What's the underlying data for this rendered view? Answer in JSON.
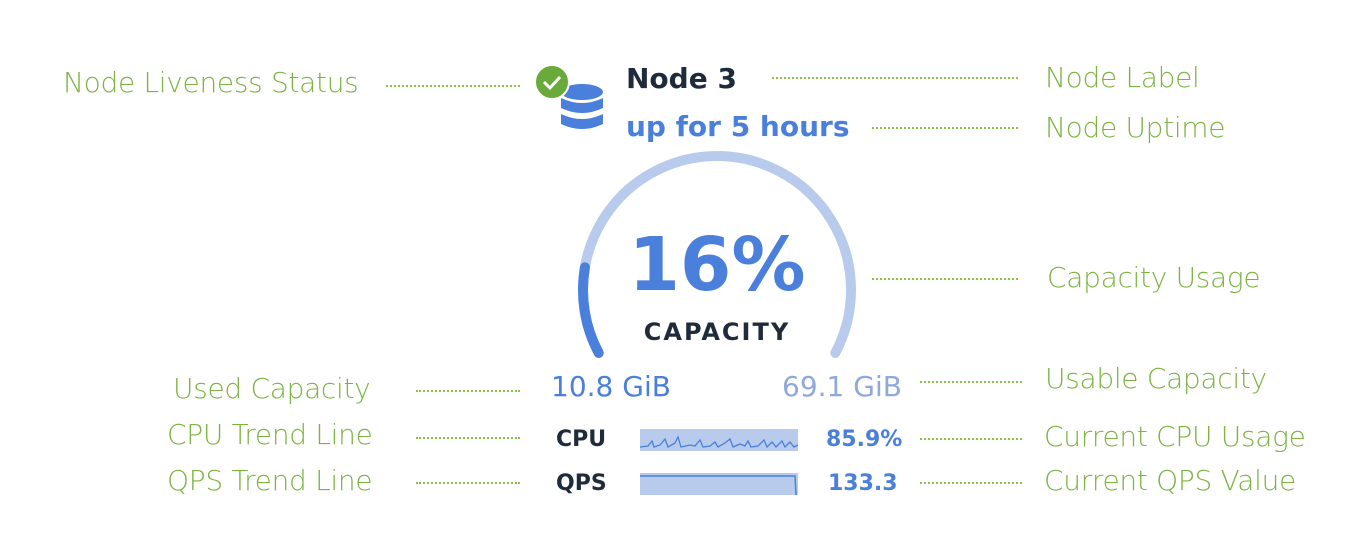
{
  "annotations": {
    "liveness": "Node Liveness Status",
    "node_label": "Node Label",
    "node_uptime": "Node Uptime",
    "capacity_usage": "Capacity Usage",
    "used_capacity": "Used Capacity",
    "usable_capacity": "Usable Capacity",
    "cpu_trend": "CPU Trend Line",
    "current_cpu": "Current CPU Usage",
    "qps_trend": "QPS Trend Line",
    "current_qps": "Current QPS Value"
  },
  "node": {
    "label": "Node 3",
    "uptime": "up for 5 hours",
    "status": "live",
    "status_icon": "check-circle-icon",
    "node_icon": "database-icon"
  },
  "capacity": {
    "percent_text": "16%",
    "percent": 16,
    "caption": "CAPACITY",
    "used": "10.8 GiB",
    "usable": "69.1 GiB"
  },
  "metrics": {
    "cpu": {
      "label": "CPU",
      "value": "85.9%"
    },
    "qps": {
      "label": "QPS",
      "value": "133.3"
    }
  },
  "colors": {
    "annotation": "#7cb342",
    "accent": "#4a7fdb",
    "track": "#b8cbec",
    "status_ok": "#6aaa3a"
  }
}
